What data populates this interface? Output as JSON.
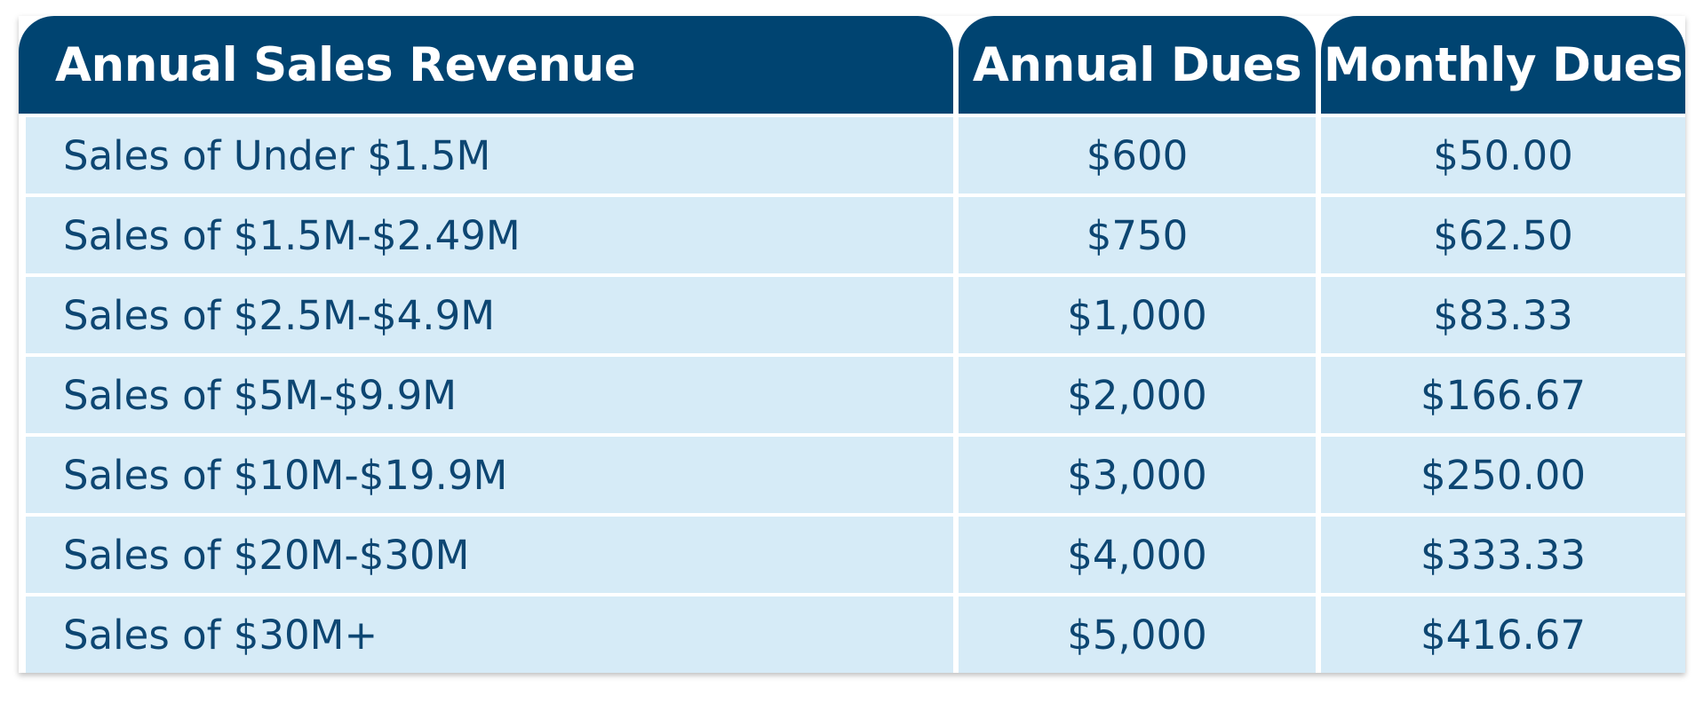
{
  "colors": {
    "header_bg": "#004471",
    "row_bg": "#d6ebf7",
    "text": "#0d4672",
    "header_text": "#ffffff",
    "divider": "#ffffff"
  },
  "table": {
    "headers": [
      "Annual Sales Revenue",
      "Annual Dues",
      "Monthly Dues"
    ],
    "rows": [
      [
        "Sales of Under $1.5M",
        "$600",
        "$50.00"
      ],
      [
        "Sales of $1.5M-$2.49M",
        "$750",
        "$62.50"
      ],
      [
        "Sales of $2.5M-$4.9M",
        "$1,000",
        "$83.33"
      ],
      [
        "Sales of $5M-$9.9M",
        "$2,000",
        "$166.67"
      ],
      [
        "Sales of $10M-$19.9M",
        "$3,000",
        "$250.00"
      ],
      [
        "Sales of $20M-$30M",
        "$4,000",
        "$333.33"
      ],
      [
        "Sales of $30M+",
        "$5,000",
        "$416.67"
      ]
    ]
  }
}
